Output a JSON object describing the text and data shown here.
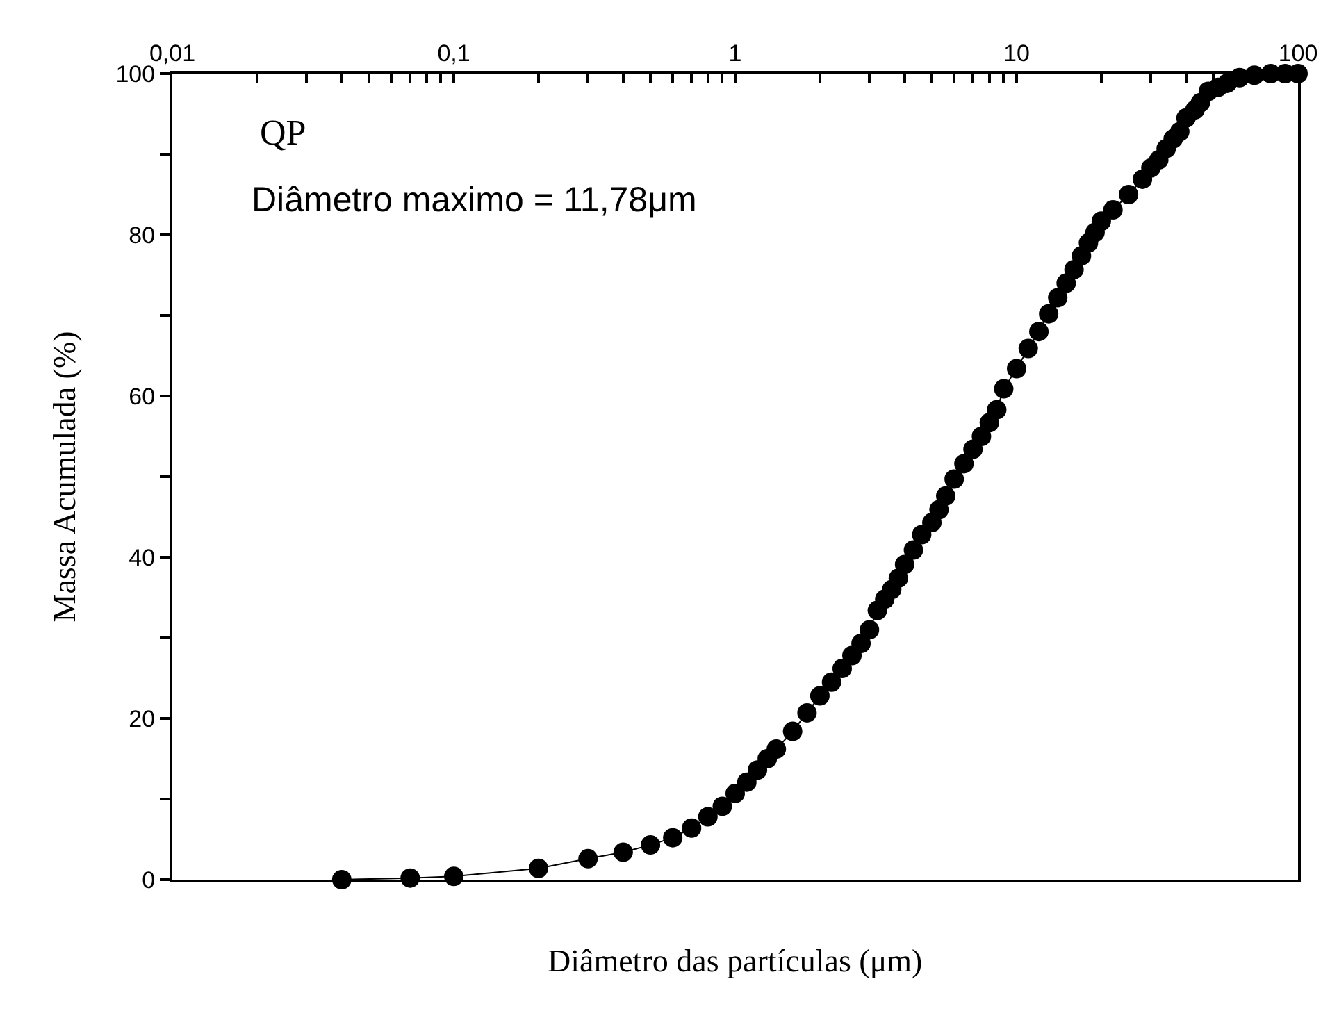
{
  "chart_data": {
    "type": "line",
    "xlabel": "Diâmetro das partículas (μm)",
    "ylabel": "Massa Acumulada (%)",
    "annotations": [
      "QP",
      "Diâmetro maximo = 11,78μm"
    ],
    "log": "x",
    "marker": "circle",
    "line_style": "solid",
    "grid": false,
    "legend": false,
    "xlim": [
      0.01,
      100
    ],
    "xticks": [
      {
        "value": 0.01,
        "label": "0,01"
      },
      {
        "value": 0.02,
        "label": null
      },
      {
        "value": 0.03,
        "label": null
      },
      {
        "value": 0.04,
        "label": null
      },
      {
        "value": 0.05,
        "label": null
      },
      {
        "value": 0.06,
        "label": null
      },
      {
        "value": 0.07,
        "label": null
      },
      {
        "value": 0.08,
        "label": null
      },
      {
        "value": 0.09,
        "label": null
      },
      {
        "value": 0.1,
        "label": "0,1"
      },
      {
        "value": 0.2,
        "label": null
      },
      {
        "value": 0.3,
        "label": null
      },
      {
        "value": 0.4,
        "label": null
      },
      {
        "value": 0.5,
        "label": null
      },
      {
        "value": 0.6,
        "label": null
      },
      {
        "value": 0.7,
        "label": null
      },
      {
        "value": 0.8,
        "label": null
      },
      {
        "value": 0.9,
        "label": null
      },
      1,
      {
        "value": 2,
        "label": null
      },
      {
        "value": 3,
        "label": null
      },
      {
        "value": 4,
        "label": null
      },
      {
        "value": 5,
        "label": null
      },
      {
        "value": 6,
        "label": null
      },
      {
        "value": 7,
        "label": null
      },
      {
        "value": 8,
        "label": null
      },
      {
        "value": 9,
        "label": null
      },
      10,
      {
        "value": 20,
        "label": null
      },
      {
        "value": 30,
        "label": null
      },
      {
        "value": 40,
        "label": null
      },
      {
        "value": 50,
        "label": null
      },
      {
        "value": 60,
        "label": null
      },
      {
        "value": 70,
        "label": null
      },
      {
        "value": 80,
        "label": null
      },
      {
        "value": 90,
        "label": null
      },
      100
    ],
    "ylim": [
      0,
      100
    ],
    "yticks": [
      0,
      {
        "value": 10,
        "label": null
      },
      20,
      {
        "value": 30,
        "label": null
      },
      40,
      {
        "value": 50,
        "label": null
      },
      60,
      {
        "value": 70,
        "label": null
      },
      80,
      {
        "value": 90,
        "label": null
      },
      100
    ],
    "series": [
      {
        "color": "#000000",
        "x": [
          0.04,
          0.07,
          0.1,
          0.2,
          0.3,
          0.4,
          0.5,
          0.6,
          0.7,
          0.8,
          0.9,
          1.0,
          1.1,
          1.2,
          1.3,
          1.4,
          1.6,
          1.8,
          2.0,
          2.2,
          2.4,
          2.6,
          2.8,
          3.0,
          3.2,
          3.4,
          3.6,
          3.8,
          4.0,
          4.3,
          4.6,
          5.0,
          5.3,
          5.6,
          6.0,
          6.5,
          7.0,
          7.5,
          8.0,
          8.5,
          9.0,
          10,
          11,
          12,
          13,
          14,
          15,
          16,
          17,
          18,
          19,
          20,
          22,
          25,
          28,
          30,
          32,
          34,
          36,
          38,
          40,
          43,
          45,
          48,
          52,
          56,
          62,
          70,
          80,
          90,
          100
        ],
        "values": [
          0,
          0.2,
          0.4,
          1.4,
          2.6,
          3.4,
          4.3,
          5.2,
          6.4,
          7.8,
          9.1,
          10.7,
          12.1,
          13.6,
          15.0,
          16.2,
          18.4,
          20.7,
          22.8,
          24.5,
          26.2,
          27.8,
          29.3,
          31.0,
          33.4,
          34.8,
          36.0,
          37.4,
          39.1,
          40.9,
          42.8,
          44.3,
          45.9,
          47.6,
          49.7,
          51.6,
          53.4,
          55.0,
          56.7,
          58.3,
          60.9,
          63.4,
          65.9,
          68.0,
          70.2,
          72.2,
          74.0,
          75.7,
          77.4,
          79.0,
          80.3,
          81.7,
          83.1,
          85.0,
          86.9,
          88.3,
          89.3,
          90.7,
          91.9,
          92.8,
          94.5,
          95.5,
          96.4,
          97.8,
          98.3,
          98.8,
          99.5,
          99.8,
          100,
          100,
          100
        ]
      }
    ]
  }
}
